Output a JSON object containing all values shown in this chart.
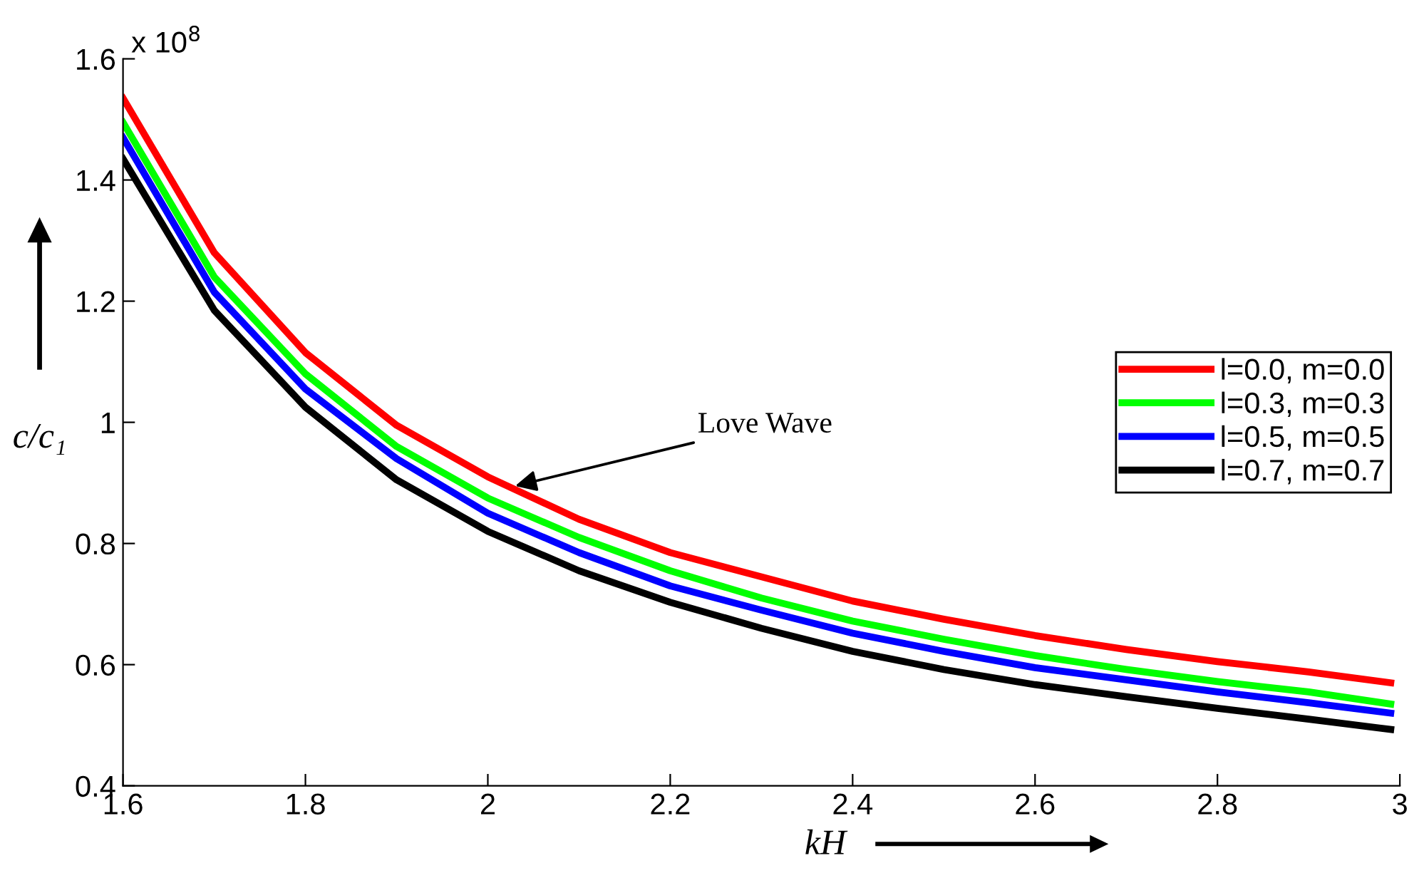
{
  "chart_data": {
    "type": "line",
    "xlabel": "kH",
    "ylabel": "c/c₁",
    "x": [
      1.6,
      1.7,
      1.8,
      1.9,
      2.0,
      2.1,
      2.2,
      2.3,
      2.4,
      2.5,
      2.6,
      2.7,
      2.8,
      2.9,
      2.99
    ],
    "series": [
      {
        "name": "l=0.0, m=0.0",
        "color": "#ff0000",
        "values": [
          1.535,
          1.28,
          1.115,
          0.995,
          0.91,
          0.84,
          0.785,
          0.745,
          0.705,
          0.675,
          0.648,
          0.625,
          0.605,
          0.588,
          0.57
        ]
      },
      {
        "name": "l=0.3, m=0.3",
        "color": "#00ff00",
        "values": [
          1.495,
          1.24,
          1.08,
          0.96,
          0.875,
          0.81,
          0.755,
          0.71,
          0.672,
          0.642,
          0.615,
          0.592,
          0.572,
          0.555,
          0.535
        ]
      },
      {
        "name": "l=0.5, m=0.5",
        "color": "#0000ff",
        "values": [
          1.47,
          1.215,
          1.055,
          0.94,
          0.85,
          0.785,
          0.73,
          0.69,
          0.652,
          0.622,
          0.595,
          0.575,
          0.555,
          0.537,
          0.52
        ]
      },
      {
        "name": "l=0.7, m=0.7",
        "color": "#000000",
        "values": [
          1.435,
          1.185,
          1.025,
          0.905,
          0.82,
          0.755,
          0.703,
          0.66,
          0.622,
          0.592,
          0.567,
          0.547,
          0.528,
          0.51,
          0.493
        ]
      }
    ],
    "xlim": [
      1.6,
      3
    ],
    "xticks": [
      1.6,
      1.8,
      2,
      2.2,
      2.4,
      2.6,
      2.8,
      3
    ],
    "ylim": [
      0.4,
      1.6
    ],
    "yticks": [
      0.4,
      0.6,
      0.8,
      1,
      1.2,
      1.4,
      1.6
    ],
    "annotations": [
      "x 10$^{8}$",
      {
        "text": "Love Wave",
        "x": 2.03,
        "y": 0.895
      }
    ],
    "legend": "center right",
    "grid": false,
    "marker": "none",
    "line_style": "solid"
  }
}
